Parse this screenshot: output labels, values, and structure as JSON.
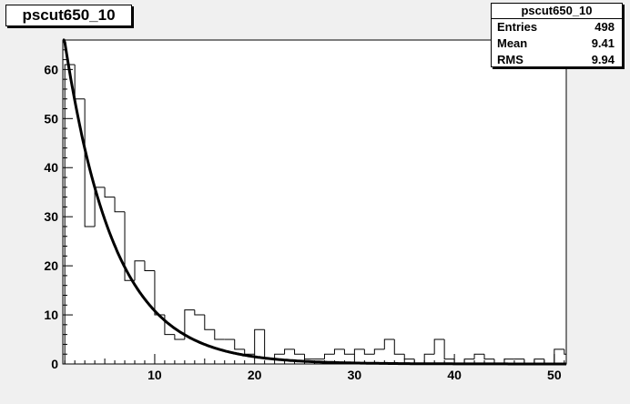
{
  "title": "pscut650_10",
  "stats": {
    "name": "pscut650_10",
    "rows": [
      {
        "label": "Entries",
        "value": "498"
      },
      {
        "label": "Mean",
        "value": "9.41"
      },
      {
        "label": "RMS",
        "value": "9.94"
      }
    ]
  },
  "chart_data": {
    "type": "bar",
    "style": "step-histogram",
    "x_range": [
      0.8,
      51.2
    ],
    "bin_width": 1,
    "bin_low_edges": [
      1,
      2,
      3,
      4,
      5,
      6,
      7,
      8,
      9,
      10,
      11,
      12,
      13,
      14,
      15,
      16,
      17,
      18,
      19,
      20,
      21,
      22,
      23,
      24,
      25,
      26,
      27,
      28,
      29,
      30,
      31,
      32,
      33,
      34,
      35,
      36,
      37,
      38,
      39,
      40,
      41,
      42,
      43,
      44,
      45,
      46,
      47,
      48,
      49,
      50,
      51
    ],
    "values": [
      61,
      54,
      28,
      36,
      34,
      31,
      17,
      21,
      19,
      10,
      6,
      5,
      11,
      10,
      7,
      5,
      5,
      3,
      2,
      7,
      1,
      2,
      3,
      2,
      1,
      1,
      2,
      3,
      2,
      3,
      2,
      3,
      5,
      2,
      1,
      0,
      2,
      5,
      1,
      0,
      1,
      2,
      1,
      0,
      1,
      1,
      0,
      1,
      0,
      3,
      2
    ],
    "ylim": [
      0,
      66
    ],
    "x_ticks": [
      10,
      20,
      30,
      40,
      50
    ],
    "y_ticks": [
      0,
      10,
      20,
      30,
      40,
      50,
      60
    ],
    "fit": {
      "type": "exponential",
      "amplitude": 80,
      "decay_length": 5.0
    },
    "grid": false,
    "xlabel": "",
    "ylabel": "",
    "colors": {
      "line": "#000000",
      "background": "#f0f0f0",
      "frame": "#ffffff"
    }
  }
}
